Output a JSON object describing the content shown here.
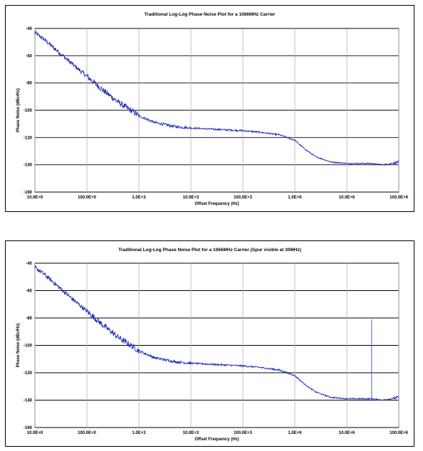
{
  "chart_data": [
    {
      "type": "line",
      "title": "Traditional Log-Log Phase Noise Plot for a 1066MHz Carrier",
      "xlabel": "Offset Frequency (Hz)",
      "ylabel": "Phase Noise (dBc/Hz)",
      "xscale": "log",
      "xlim": [
        10,
        100000000
      ],
      "ylim": [
        -160,
        -40
      ],
      "x_tick_labels": [
        "10.0E+0",
        "100.0E+0",
        "1.0E+3",
        "10.0E+3",
        "100.0E+3",
        "1.0E+6",
        "10.0E+6",
        "100.0E+6"
      ],
      "y_tick_values": [
        -40,
        -60,
        -80,
        -100,
        -120,
        -140,
        -160
      ],
      "y_tick_labels": [
        "-40",
        "-60",
        "-80",
        "-100",
        "-120",
        "-140",
        "-160"
      ],
      "grid": true,
      "legend": "none",
      "line_color": "#1f2db5",
      "series": [
        {
          "x": [
            10,
            15,
            30,
            60,
            100,
            200,
            400,
            700,
            1000,
            2000,
            5000,
            10000,
            30000,
            100000,
            200000,
            500000,
            1000000,
            1500000,
            2500000,
            5000000,
            10000000,
            30000000,
            50000000,
            100000000
          ],
          "y": [
            -43,
            -48,
            -58,
            -68,
            -75,
            -85,
            -94,
            -100,
            -104,
            -109,
            -112,
            -113,
            -114,
            -115,
            -116,
            -118,
            -122,
            -128,
            -134,
            -138,
            -139,
            -139,
            -140,
            -138
          ]
        }
      ]
    },
    {
      "type": "line",
      "title": "Traditional Log-Log Phase Noise Plot for a 1066MHz Carrier (Spur visible at 30MHz)",
      "xlabel": "Offset Frequency (Hz)",
      "ylabel": "Phase Noise (dBc/Hz)",
      "xscale": "log",
      "xlim": [
        10,
        100000000
      ],
      "ylim": [
        -160,
        -40
      ],
      "x_tick_labels": [
        "10.0E+0",
        "100.0E+0",
        "1.0E+3",
        "10.0E+3",
        "100.0E+3",
        "1.0E+6",
        "10.0E+6",
        "100.0E+6"
      ],
      "y_tick_values": [
        -40,
        -60,
        -80,
        -100,
        -120,
        -140,
        -160
      ],
      "y_tick_labels": [
        "-40",
        "-60",
        "-80",
        "-100",
        "-120",
        "-140",
        "-160"
      ],
      "grid": true,
      "legend": "none",
      "line_color": "#1f2db5",
      "spur": {
        "x": 30000000,
        "y": -81
      },
      "series": [
        {
          "x": [
            10,
            15,
            30,
            60,
            100,
            200,
            400,
            700,
            1000,
            2000,
            5000,
            10000,
            30000,
            100000,
            200000,
            500000,
            1000000,
            1500000,
            2500000,
            5000000,
            10000000,
            30000000,
            50000000,
            100000000
          ],
          "y": [
            -43,
            -48,
            -58,
            -68,
            -75,
            -85,
            -94,
            -100,
            -104,
            -109,
            -112,
            -113,
            -114,
            -115,
            -116,
            -118,
            -122,
            -128,
            -134,
            -138,
            -139,
            -139,
            -140,
            -138
          ]
        }
      ]
    }
  ]
}
